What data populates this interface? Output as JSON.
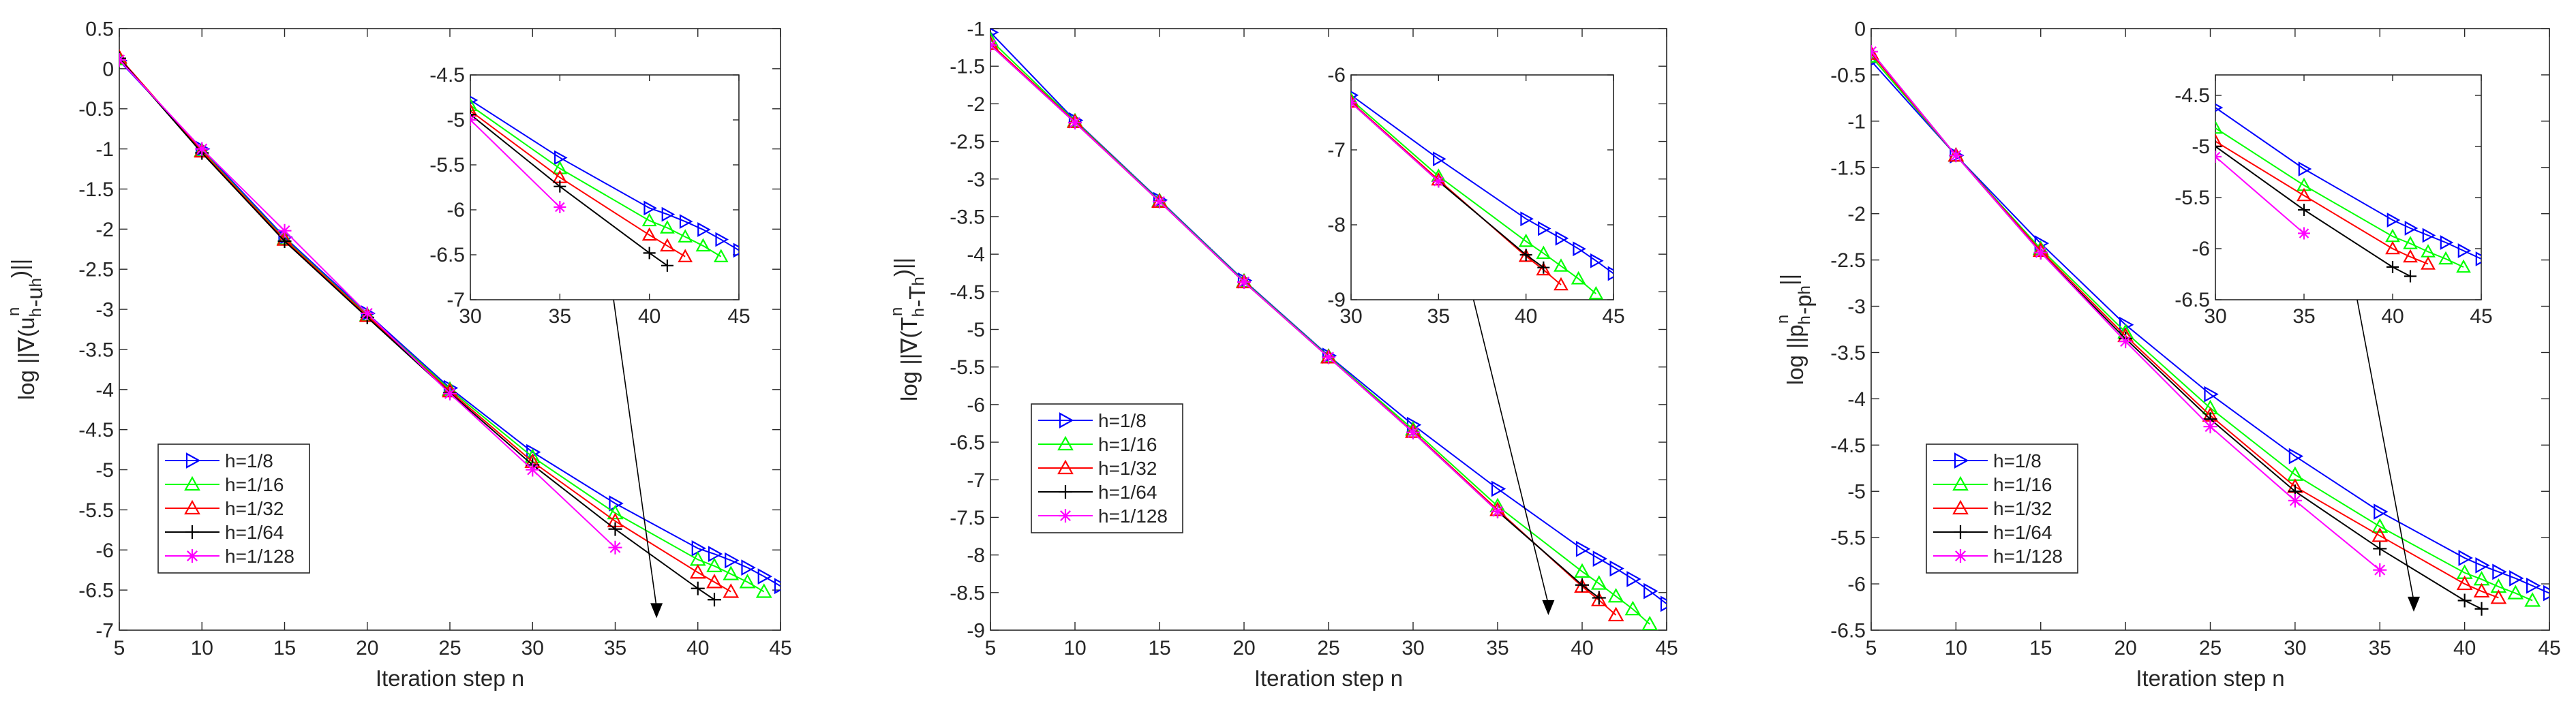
{
  "figure": {
    "colors": {
      "h8": "#0000ff",
      "h16": "#00ff00",
      "h32": "#ff0000",
      "h64": "#000000",
      "h128": "#ff00ff",
      "axis": "#262626"
    }
  },
  "legend": [
    {
      "key": "h8",
      "label": "h=1/8",
      "color": "#0000ff",
      "marker": "triangle-right"
    },
    {
      "key": "h16",
      "label": "h=1/16",
      "color": "#00ff00",
      "marker": "triangle-up"
    },
    {
      "key": "h32",
      "label": "h=1/32",
      "color": "#ff0000",
      "marker": "triangle-up"
    },
    {
      "key": "h64",
      "label": "h=1/64",
      "color": "#000000",
      "marker": "plus"
    },
    {
      "key": "h128",
      "label": "h=1/128",
      "color": "#ff00ff",
      "marker": "asterisk"
    }
  ],
  "chart_data": [
    {
      "type": "line",
      "xlabel": "Iteration step n",
      "ylabel": "log ||∇(u_h^n - u_h)||",
      "ylabel_parts": [
        "log ||∇(u",
        "h",
        "n",
        "-u",
        "h",
        ")||"
      ],
      "xlim": [
        5,
        45
      ],
      "ylim": [
        -7,
        0.5
      ],
      "xticks": [
        5,
        10,
        15,
        20,
        25,
        30,
        35,
        40,
        45
      ],
      "xtick_labels": [
        "5",
        "10",
        "15",
        "20",
        "25",
        "30",
        "35",
        "40",
        "45"
      ],
      "yticks": [
        -7,
        -6.5,
        -6,
        -5.5,
        -5,
        -4.5,
        -4,
        -3.5,
        -3,
        -2.5,
        -2,
        -1.5,
        -1,
        -0.5,
        0,
        0.5
      ],
      "ytick_labels": [
        "-7",
        "-6.5",
        "-6",
        "-5.5",
        "-5",
        "-4.5",
        "-4",
        "-3.5",
        "-3",
        "-2.5",
        "-2",
        "-1.5",
        "-1",
        "-0.5",
        "0",
        "0.5"
      ],
      "series": [
        {
          "key": "h8",
          "name": "h=1/8",
          "x": [
            5,
            10,
            15,
            20,
            25,
            30,
            35,
            40,
            41,
            42,
            43,
            44,
            45
          ],
          "y": [
            0.1,
            -1.0,
            -2.1,
            -3.05,
            -3.98,
            -4.78,
            -5.42,
            -5.98,
            -6.05,
            -6.13,
            -6.22,
            -6.33,
            -6.45
          ]
        },
        {
          "key": "h16",
          "name": "h=1/16",
          "x": [
            5,
            10,
            15,
            20,
            25,
            30,
            35,
            40,
            41,
            42,
            43,
            44
          ],
          "y": [
            0.12,
            -1.02,
            -2.12,
            -3.07,
            -4.0,
            -4.84,
            -5.54,
            -6.12,
            -6.2,
            -6.3,
            -6.4,
            -6.52
          ]
        },
        {
          "key": "h32",
          "name": "h=1/32",
          "x": [
            5,
            10,
            15,
            20,
            25,
            30,
            35,
            40,
            41,
            42
          ],
          "y": [
            0.14,
            -1.03,
            -2.13,
            -3.08,
            -4.02,
            -4.9,
            -5.64,
            -6.28,
            -6.4,
            -6.52
          ]
        },
        {
          "key": "h64",
          "name": "h=1/64",
          "x": [
            5,
            10,
            15,
            20,
            25,
            30,
            35,
            40,
            41
          ],
          "y": [
            0.13,
            -1.05,
            -2.15,
            -3.1,
            -4.04,
            -4.94,
            -5.74,
            -6.48,
            -6.62
          ]
        },
        {
          "key": "h128",
          "name": "h=1/128",
          "x": [
            5,
            10,
            15,
            20,
            25,
            30,
            35
          ],
          "y": [
            0.11,
            -1.0,
            -2.02,
            -3.05,
            -4.05,
            -5.0,
            -5.97
          ]
        }
      ],
      "inset": {
        "xlim": [
          30,
          45
        ],
        "ylim": [
          -7,
          -4.5
        ],
        "xticks": [
          30,
          35,
          40,
          45
        ],
        "xtick_labels": [
          "30",
          "35",
          "40",
          "45"
        ],
        "yticks": [
          -7,
          -6.5,
          -6,
          -5.5,
          -5,
          -4.5
        ],
        "ytick_labels": [
          "-7",
          "-6.5",
          "-6",
          "-5.5",
          "-5",
          "-4.5"
        ]
      },
      "arrow": {
        "from_inset": [
          38,
          -7
        ],
        "to": [
          37.5,
          -6.85
        ]
      }
    },
    {
      "type": "line",
      "xlabel": "Iteration step n",
      "ylabel": "log ||∇(T_h^n - T_h)||",
      "ylabel_parts": [
        "log ||∇(T",
        "h",
        "n",
        "-T",
        "h",
        ")||"
      ],
      "xlim": [
        5,
        45
      ],
      "ylim": [
        -9,
        -1
      ],
      "xticks": [
        5,
        10,
        15,
        20,
        25,
        30,
        35,
        40,
        45
      ],
      "xtick_labels": [
        "5",
        "10",
        "15",
        "20",
        "25",
        "30",
        "35",
        "40",
        "45"
      ],
      "yticks": [
        -9,
        -8.5,
        -8,
        -7.5,
        -7,
        -6.5,
        -6,
        -5.5,
        -5,
        -4.5,
        -4,
        -3.5,
        -3,
        -2.5,
        -2,
        -1.5,
        -1
      ],
      "ytick_labels": [
        "-9",
        "-8.5",
        "-8",
        "-7.5",
        "-7",
        "-6.5",
        "-6",
        "-5.5",
        "-5",
        "-4.5",
        "-4",
        "-3.5",
        "-3",
        "-2.5",
        "-2",
        "-1.5",
        "-1"
      ],
      "series": [
        {
          "key": "h8",
          "name": "h=1/8",
          "x": [
            5,
            10,
            15,
            20,
            25,
            30,
            35,
            40,
            41,
            42,
            43,
            44,
            45
          ],
          "y": [
            -1.05,
            -2.22,
            -3.28,
            -4.35,
            -5.35,
            -6.27,
            -7.12,
            -7.92,
            -8.05,
            -8.18,
            -8.32,
            -8.48,
            -8.65
          ]
        },
        {
          "key": "h16",
          "name": "h=1/16",
          "x": [
            5,
            10,
            15,
            20,
            25,
            30,
            35,
            40,
            41,
            42,
            43,
            44
          ],
          "y": [
            -1.15,
            -2.23,
            -3.29,
            -4.36,
            -5.36,
            -6.33,
            -7.35,
            -8.22,
            -8.38,
            -8.55,
            -8.72,
            -8.92
          ]
        },
        {
          "key": "h32",
          "name": "h=1/32",
          "x": [
            5,
            10,
            15,
            20,
            25,
            30,
            35,
            40,
            41,
            42
          ],
          "y": [
            -1.2,
            -2.24,
            -3.3,
            -4.37,
            -5.37,
            -6.36,
            -7.4,
            -8.42,
            -8.6,
            -8.8
          ]
        },
        {
          "key": "h64",
          "name": "h=1/64",
          "x": [
            5,
            10,
            15,
            20,
            25,
            30,
            35,
            40,
            41
          ],
          "y": [
            -1.22,
            -2.25,
            -3.3,
            -4.37,
            -5.37,
            -6.37,
            -7.42,
            -8.4,
            -8.57
          ]
        },
        {
          "key": "h128",
          "name": "h=1/128",
          "x": [
            5,
            10,
            15,
            20,
            25,
            30,
            35
          ],
          "y": [
            -1.22,
            -2.25,
            -3.3,
            -4.37,
            -5.37,
            -6.37,
            -7.42
          ]
        }
      ],
      "inset": {
        "xlim": [
          30,
          45
        ],
        "ylim": [
          -9,
          -6
        ],
        "xticks": [
          30,
          35,
          40,
          45
        ],
        "xtick_labels": [
          "30",
          "35",
          "40",
          "45"
        ],
        "yticks": [
          -9,
          -8,
          -7,
          -6
        ],
        "ytick_labels": [
          "-9",
          "-8",
          "-7",
          "-6"
        ]
      },
      "arrow": {
        "from_inset": [
          37,
          -9
        ],
        "to": [
          38,
          -8.8
        ]
      }
    },
    {
      "type": "line",
      "xlabel": "Iteration step n",
      "ylabel": "log ||p_h^n - p_h||",
      "ylabel_parts": [
        "log ||p",
        "h",
        "n",
        "-p",
        "h",
        "||"
      ],
      "xlim": [
        5,
        45
      ],
      "ylim": [
        -6.5,
        0
      ],
      "xticks": [
        5,
        10,
        15,
        20,
        25,
        30,
        35,
        40,
        45
      ],
      "xtick_labels": [
        "5",
        "10",
        "15",
        "20",
        "25",
        "30",
        "35",
        "40",
        "45"
      ],
      "yticks": [
        -6.5,
        -6,
        -5.5,
        -5,
        -4.5,
        -4,
        -3.5,
        -3,
        -2.5,
        -2,
        -1.5,
        -1,
        -0.5,
        0
      ],
      "ytick_labels": [
        "-6.5",
        "-6",
        "-5.5",
        "-5",
        "-4.5",
        "-4",
        "-3.5",
        "-3",
        "-2.5",
        "-2",
        "-1.5",
        "-1",
        "-0.5",
        "0"
      ],
      "series": [
        {
          "key": "h8",
          "name": "h=1/8",
          "x": [
            5,
            10,
            15,
            20,
            25,
            30,
            35,
            40,
            41,
            42,
            43,
            44,
            45
          ],
          "y": [
            -0.35,
            -1.37,
            -2.32,
            -3.2,
            -3.95,
            -4.62,
            -5.22,
            -5.72,
            -5.8,
            -5.87,
            -5.94,
            -6.02,
            -6.1
          ]
        },
        {
          "key": "h16",
          "name": "h=1/16",
          "x": [
            5,
            10,
            15,
            20,
            25,
            30,
            35,
            40,
            41,
            42,
            43,
            44
          ],
          "y": [
            -0.3,
            -1.37,
            -2.38,
            -3.28,
            -4.1,
            -4.82,
            -5.38,
            -5.88,
            -5.95,
            -6.03,
            -6.1,
            -6.18
          ]
        },
        {
          "key": "h32",
          "name": "h=1/32",
          "x": [
            5,
            10,
            15,
            20,
            25,
            30,
            35,
            40,
            41,
            42
          ],
          "y": [
            -0.27,
            -1.37,
            -2.4,
            -3.32,
            -4.18,
            -4.95,
            -5.48,
            -6.0,
            -6.08,
            -6.15
          ]
        },
        {
          "key": "h64",
          "name": "h=1/64",
          "x": [
            5,
            10,
            15,
            20,
            25,
            30,
            35,
            40,
            41
          ],
          "y": [
            -0.25,
            -1.37,
            -2.42,
            -3.35,
            -4.22,
            -5.0,
            -5.62,
            -6.18,
            -6.27
          ]
        },
        {
          "key": "h128",
          "name": "h=1/128",
          "x": [
            5,
            10,
            15,
            20,
            25,
            30,
            35
          ],
          "y": [
            -0.25,
            -1.37,
            -2.42,
            -3.38,
            -4.3,
            -5.1,
            -5.85
          ]
        }
      ],
      "inset": {
        "xlim": [
          30,
          45
        ],
        "ylim": [
          -6.5,
          -4.3
        ],
        "xticks": [
          30,
          35,
          40,
          45
        ],
        "xtick_labels": [
          "30",
          "35",
          "40",
          "45"
        ],
        "yticks": [
          -6.5,
          -6,
          -5.5,
          -5,
          -4.5
        ],
        "ytick_labels": [
          "-6.5",
          "-6",
          "-5.5",
          "-5",
          "-4.5"
        ]
      },
      "arrow": {
        "from_inset": [
          38,
          -6.5
        ],
        "to": [
          37,
          -6.3
        ]
      }
    }
  ]
}
